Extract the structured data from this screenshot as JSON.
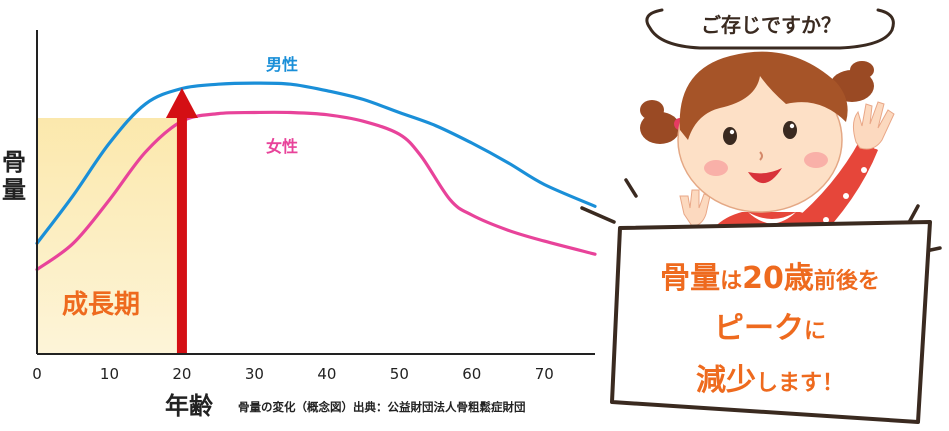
{
  "chart_data": {
    "type": "line",
    "title": "",
    "xlabel": "年齢",
    "ylabel": "骨量",
    "xlim": [
      0,
      77
    ],
    "x_ticks": [
      "0",
      "10",
      "20",
      "30",
      "40",
      "50",
      "60",
      "70"
    ],
    "series": [
      {
        "name": "男性",
        "color": "#1a8fd8",
        "points": [
          [
            0,
            26
          ],
          [
            5,
            48
          ],
          [
            10,
            72
          ],
          [
            15,
            90
          ],
          [
            20,
            97
          ],
          [
            25,
            99
          ],
          [
            30,
            99.5
          ],
          [
            35,
            99
          ],
          [
            40,
            96
          ],
          [
            45,
            92
          ],
          [
            50,
            86
          ],
          [
            55,
            80
          ],
          [
            60,
            72
          ],
          [
            65,
            63
          ],
          [
            70,
            53
          ],
          [
            77,
            43
          ]
        ]
      },
      {
        "name": "女性",
        "color": "#e8439a",
        "points": [
          [
            0,
            14
          ],
          [
            5,
            26
          ],
          [
            10,
            46
          ],
          [
            15,
            68
          ],
          [
            20,
            82
          ],
          [
            25,
            85.5
          ],
          [
            30,
            86
          ],
          [
            35,
            86
          ],
          [
            40,
            85
          ],
          [
            45,
            82
          ],
          [
            50,
            76
          ],
          [
            53,
            66
          ],
          [
            57,
            46
          ],
          [
            60,
            39
          ],
          [
            65,
            32
          ],
          [
            70,
            27
          ],
          [
            77,
            21
          ]
        ]
      }
    ],
    "annotations": {
      "growth_period": {
        "label": "成長期",
        "x_range": [
          0,
          20
        ],
        "color": "#fbe7a8"
      },
      "peak_arrow_x": 20
    }
  },
  "caption": "骨量の変化（概念図）出典：公益財団法人骨粗鬆症財団",
  "speech_bubble": "ご存じですか？",
  "sign": {
    "line1": [
      {
        "text": "骨量",
        "style": "big"
      },
      {
        "text": "は",
        "style": "small"
      },
      {
        "text": "20歳",
        "style": "big"
      },
      {
        "text": "前後を",
        "style": "small"
      }
    ],
    "line2": [
      {
        "text": "ピーク",
        "style": "big"
      },
      {
        "text": "に",
        "style": "small"
      }
    ],
    "line3": [
      {
        "text": "減少",
        "style": "big"
      },
      {
        "text": "します！",
        "style": "small"
      }
    ]
  },
  "colors": {
    "sign_text": "#ee6a1e",
    "arrow": "#d40f14",
    "axis": "#222222"
  }
}
